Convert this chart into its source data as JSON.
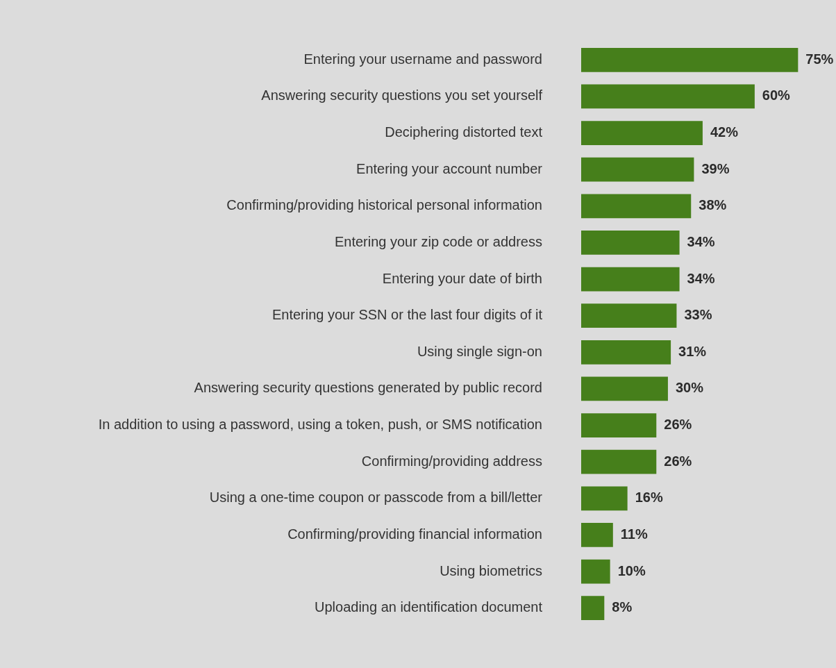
{
  "chart_data": {
    "type": "bar",
    "orientation": "horizontal",
    "categories": [
      "Entering your username and password",
      "Answering security questions you set yourself",
      "Deciphering distorted text",
      "Entering your account number",
      "Confirming/providing historical personal information",
      "Entering your zip code or address",
      "Entering your date of birth",
      "Entering your SSN or the last four digits of it",
      "Using single sign-on",
      "Answering security questions generated by public record",
      "In addition to using a password, using a token, push, or SMS notification",
      "Confirming/providing address",
      "Using a one-time coupon or passcode from a bill/letter",
      "Confirming/providing financial information",
      "Using biometrics",
      "Uploading an identification document"
    ],
    "values": [
      75,
      60,
      42,
      39,
      38,
      34,
      34,
      33,
      31,
      30,
      26,
      26,
      16,
      11,
      10,
      8
    ],
    "value_labels": [
      "75%",
      "60%",
      "42%",
      "39%",
      "38%",
      "34%",
      "34%",
      "33%",
      "31%",
      "30%",
      "26%",
      "26%",
      "16%",
      "11%",
      "10%",
      "8%"
    ],
    "color": "#467f1b"
  }
}
